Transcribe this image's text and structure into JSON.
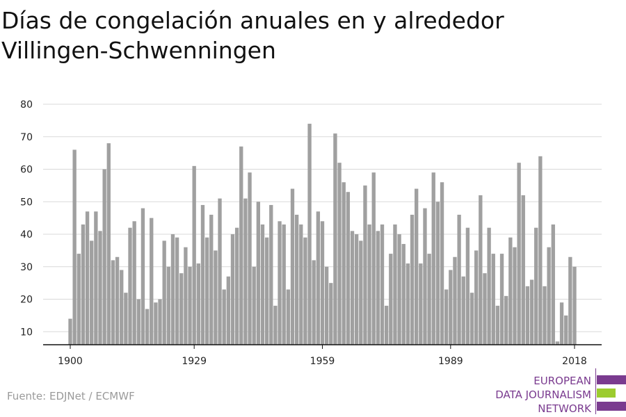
{
  "title": "Días de congelación anuales en y alrededor Villingen-Schwenningen",
  "source": "Fuente: EDJNet / ECMWF",
  "logo": {
    "line1": "EUROPEAN",
    "line2": "DATA JOURNALISM",
    "line3": "NETWORK",
    "colors": {
      "purple": "#7a3b8f",
      "green": "#9ccc2f"
    }
  },
  "colors": {
    "bar": "#a0a0a0",
    "grid": "#d9d9d9",
    "axis": "#111111"
  },
  "chart_data": {
    "type": "bar",
    "title": "Días de congelación anuales en y alrededor Villingen-Schwenningen",
    "xlabel": "",
    "ylabel": "",
    "ylim": [
      6,
      80
    ],
    "yticks": [
      10,
      20,
      30,
      40,
      50,
      60,
      70,
      80
    ],
    "xticks": [
      1900,
      1929,
      1959,
      1989,
      2018
    ],
    "grid": true,
    "x": [
      1900,
      1901,
      1902,
      1903,
      1904,
      1905,
      1906,
      1907,
      1908,
      1909,
      1910,
      1911,
      1912,
      1913,
      1914,
      1915,
      1916,
      1917,
      1918,
      1919,
      1920,
      1921,
      1922,
      1923,
      1924,
      1925,
      1926,
      1927,
      1928,
      1929,
      1930,
      1931,
      1932,
      1933,
      1934,
      1935,
      1936,
      1937,
      1938,
      1939,
      1940,
      1941,
      1942,
      1943,
      1944,
      1945,
      1946,
      1947,
      1948,
      1949,
      1950,
      1951,
      1952,
      1953,
      1954,
      1955,
      1956,
      1957,
      1958,
      1959,
      1960,
      1961,
      1962,
      1963,
      1964,
      1965,
      1966,
      1967,
      1968,
      1969,
      1970,
      1971,
      1972,
      1973,
      1974,
      1975,
      1976,
      1977,
      1978,
      1979,
      1980,
      1981,
      1982,
      1983,
      1984,
      1985,
      1986,
      1987,
      1988,
      1989,
      1990,
      1991,
      1992,
      1993,
      1994,
      1995,
      1996,
      1997,
      1998,
      1999,
      2000,
      2001,
      2002,
      2003,
      2004,
      2005,
      2006,
      2007,
      2008,
      2009,
      2010,
      2011,
      2012,
      2013,
      2014,
      2015,
      2016,
      2017,
      2018
    ],
    "values": [
      14,
      66,
      34,
      43,
      47,
      38,
      47,
      41,
      60,
      68,
      32,
      33,
      29,
      22,
      42,
      44,
      20,
      48,
      17,
      45,
      19,
      20,
      38,
      30,
      40,
      39,
      28,
      36,
      30,
      61,
      31,
      49,
      39,
      46,
      35,
      51,
      23,
      27,
      40,
      42,
      67,
      51,
      59,
      30,
      50,
      43,
      39,
      49,
      18,
      44,
      43,
      23,
      54,
      46,
      43,
      39,
      74,
      32,
      47,
      44,
      30,
      25,
      71,
      62,
      56,
      53,
      41,
      40,
      38,
      55,
      43,
      59,
      41,
      43,
      18,
      34,
      43,
      40,
      37,
      31,
      46,
      54,
      31,
      48,
      34,
      59,
      50,
      56,
      23,
      29,
      33,
      46,
      27,
      42,
      22,
      35,
      52,
      28,
      42,
      34,
      18,
      34,
      21,
      39,
      36,
      62,
      52,
      24,
      26,
      42,
      64,
      24,
      36,
      43,
      7,
      19,
      15,
      33,
      30
    ]
  }
}
